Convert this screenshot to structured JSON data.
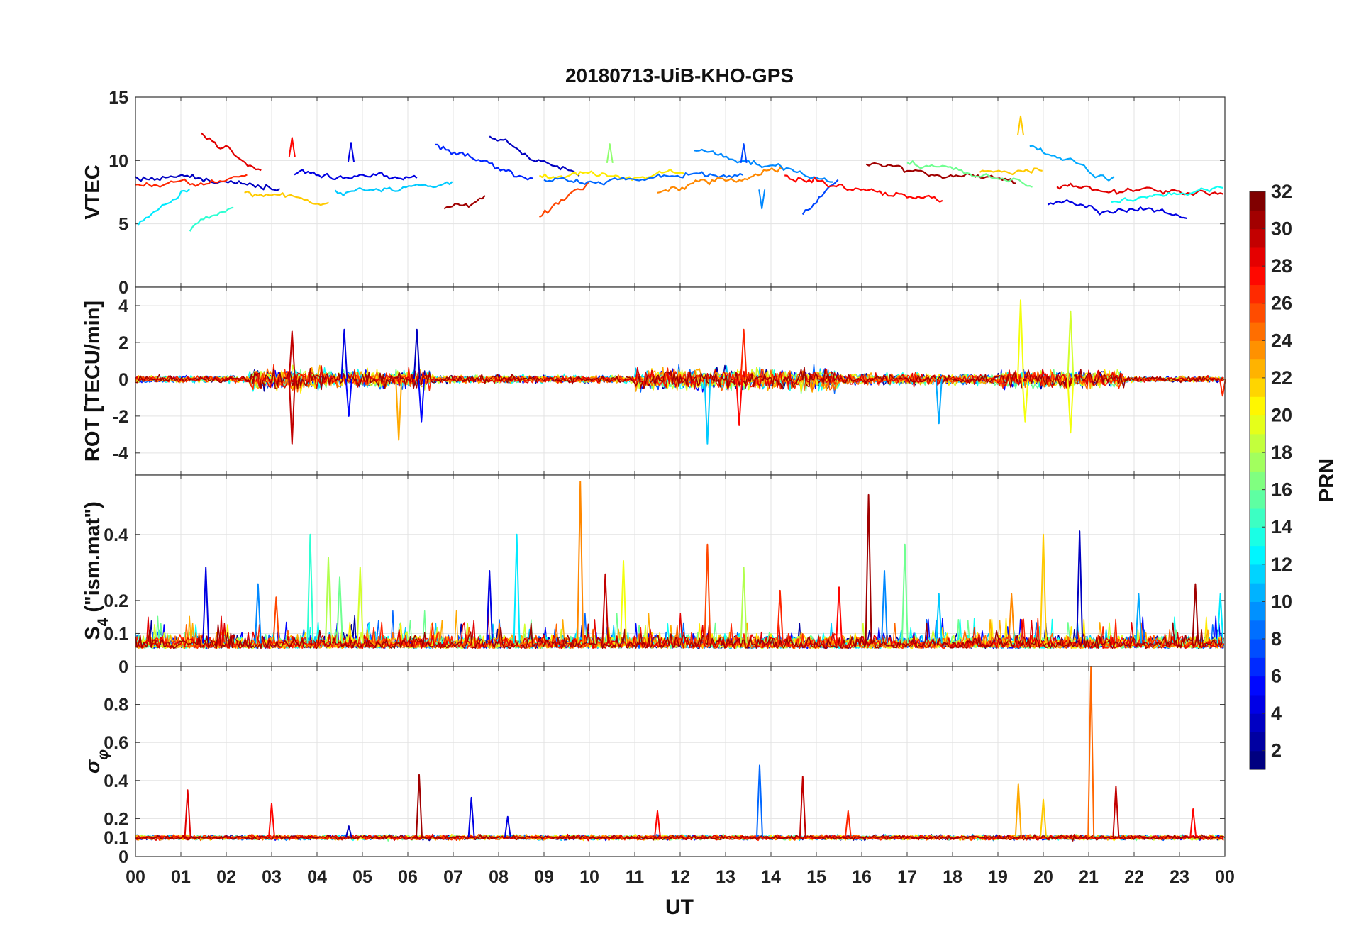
{
  "chart_data": {
    "type": "line",
    "title": "20180713-UiB-KHO-GPS",
    "xlabel": "UT",
    "x_range_hours": [
      0,
      24
    ],
    "x_tick_labels": [
      "00",
      "01",
      "02",
      "03",
      "04",
      "05",
      "06",
      "07",
      "08",
      "09",
      "10",
      "11",
      "12",
      "13",
      "14",
      "15",
      "16",
      "17",
      "18",
      "19",
      "20",
      "21",
      "22",
      "23",
      "00"
    ],
    "panels": [
      {
        "id": "vtec",
        "ylabel": "VTEC",
        "ylim": [
          0,
          15
        ],
        "yticks": [
          0,
          5,
          10,
          15
        ],
        "baseline": 8.2,
        "noise": 0.9,
        "segments": [
          {
            "prn": 3,
            "t0": 0.0,
            "t1": 3.2,
            "start": 8.6,
            "end": 8.0
          },
          {
            "prn": 12,
            "t0": 0.05,
            "t1": 1.2,
            "start": 5.0,
            "end": 7.6
          },
          {
            "prn": 14,
            "t0": 1.2,
            "t1": 2.2,
            "start": 4.4,
            "end": 6.1
          },
          {
            "prn": 29,
            "t0": 1.45,
            "t1": 2.8,
            "start": 12.0,
            "end": 9.0
          },
          {
            "prn": 27,
            "t0": 0.0,
            "t1": 2.5,
            "start": 8.1,
            "end": 8.6
          },
          {
            "prn": 22,
            "t0": 2.4,
            "t1": 4.3,
            "start": 7.4,
            "end": 6.6
          },
          {
            "prn": 4,
            "t0": 3.5,
            "t1": 6.2,
            "start": 9.0,
            "end": 8.6
          },
          {
            "prn": 11,
            "t0": 4.4,
            "t1": 7.0,
            "start": 7.5,
            "end": 8.3
          },
          {
            "prn": 6,
            "t0": 6.6,
            "t1": 8.8,
            "start": 11.1,
            "end": 8.6
          },
          {
            "prn": 31,
            "t0": 6.8,
            "t1": 7.7,
            "start": 6.3,
            "end": 6.8
          },
          {
            "prn": 3,
            "t0": 7.8,
            "t1": 9.8,
            "start": 11.8,
            "end": 8.8
          },
          {
            "prn": 26,
            "t0": 8.9,
            "t1": 10.0,
            "start": 5.4,
            "end": 8.6
          },
          {
            "prn": 21,
            "t0": 8.9,
            "t1": 12.1,
            "start": 8.8,
            "end": 9.1
          },
          {
            "prn": 8,
            "t0": 9.0,
            "t1": 13.4,
            "start": 8.4,
            "end": 8.7
          },
          {
            "prn": 24,
            "t0": 11.5,
            "t1": 14.3,
            "start": 7.4,
            "end": 9.4
          },
          {
            "prn": 9,
            "t0": 12.3,
            "t1": 15.4,
            "start": 10.6,
            "end": 8.6
          },
          {
            "prn": 7,
            "t0": 14.7,
            "t1": 15.5,
            "start": 5.7,
            "end": 8.9
          },
          {
            "prn": 28,
            "t0": 14.3,
            "t1": 17.8,
            "start": 8.8,
            "end": 6.7
          },
          {
            "prn": 31,
            "t0": 16.1,
            "t1": 19.4,
            "start": 9.8,
            "end": 8.3
          },
          {
            "prn": 16,
            "t0": 17.0,
            "t1": 19.8,
            "start": 9.8,
            "end": 8.0
          },
          {
            "prn": 22,
            "t0": 18.6,
            "t1": 20.0,
            "start": 9.0,
            "end": 9.5
          },
          {
            "prn": 10,
            "t0": 19.7,
            "t1": 21.6,
            "start": 11.2,
            "end": 8.7
          },
          {
            "prn": 4,
            "t0": 20.1,
            "t1": 23.2,
            "start": 6.6,
            "end": 5.7
          },
          {
            "prn": 29,
            "t0": 20.3,
            "t1": 24.0,
            "start": 7.9,
            "end": 7.3
          },
          {
            "prn": 13,
            "t0": 21.5,
            "t1": 24.0,
            "start": 6.8,
            "end": 8.1
          }
        ],
        "spikes": [
          {
            "t": 3.45,
            "v": 11.8,
            "prn": 28
          },
          {
            "t": 4.75,
            "v": 11.4,
            "prn": 4
          },
          {
            "t": 10.45,
            "v": 11.3,
            "prn": 17
          },
          {
            "t": 13.4,
            "v": 11.3,
            "prn": 7
          },
          {
            "t": 19.5,
            "v": 13.5,
            "prn": 22
          },
          {
            "t": 13.8,
            "v": 6.2,
            "prn": 9
          }
        ]
      },
      {
        "id": "rot",
        "ylabel": "ROT [TECU/min]",
        "ylim": [
          -5.2,
          5.0
        ],
        "yticks": [
          -4,
          -2,
          0,
          2,
          4
        ],
        "baseline": 0,
        "noise_profile": [
          {
            "t0": 0,
            "t1": 2.5,
            "amp": 0.3
          },
          {
            "t0": 2.5,
            "t1": 4.2,
            "amp": 1.0
          },
          {
            "t0": 4.2,
            "t1": 6.5,
            "amp": 0.8
          },
          {
            "t0": 6.5,
            "t1": 11.0,
            "amp": 0.35
          },
          {
            "t0": 11.0,
            "t1": 15.5,
            "amp": 1.0
          },
          {
            "t0": 15.5,
            "t1": 19.0,
            "amp": 0.5
          },
          {
            "t0": 19.0,
            "t1": 21.8,
            "amp": 0.8
          },
          {
            "t0": 21.8,
            "t1": 24.0,
            "amp": 0.25
          }
        ],
        "spikes": [
          {
            "t": 3.45,
            "v": 2.6,
            "prn": 30
          },
          {
            "t": 3.45,
            "v": -3.5,
            "prn": 30
          },
          {
            "t": 4.6,
            "v": 2.7,
            "prn": 4
          },
          {
            "t": 4.7,
            "v": -2.0,
            "prn": 5
          },
          {
            "t": 5.8,
            "v": -3.3,
            "prn": 23
          },
          {
            "t": 6.2,
            "v": 2.7,
            "prn": 3
          },
          {
            "t": 6.3,
            "v": -2.3,
            "prn": 5
          },
          {
            "t": 12.6,
            "v": -3.5,
            "prn": 11
          },
          {
            "t": 13.4,
            "v": 2.7,
            "prn": 27
          },
          {
            "t": 13.3,
            "v": -2.5,
            "prn": 28
          },
          {
            "t": 17.7,
            "v": -2.4,
            "prn": 10
          },
          {
            "t": 19.5,
            "v": 4.3,
            "prn": 20
          },
          {
            "t": 19.6,
            "v": -2.3,
            "prn": 20
          },
          {
            "t": 20.6,
            "v": 3.7,
            "prn": 19
          },
          {
            "t": 20.6,
            "v": -2.9,
            "prn": 20
          },
          {
            "t": 23.95,
            "v": -0.9,
            "prn": 27
          }
        ]
      },
      {
        "id": "s4",
        "ylabel": "S_4 (\"ism.mat\")",
        "ylabel_main": "S",
        "ylabel_sub": "4",
        "ylabel_rest": " (\"ism.mat\")",
        "ylim": [
          0,
          0.58
        ],
        "yticks": [
          0,
          0.1,
          0.2,
          0.4
        ],
        "baseline": 0.07,
        "noise": 0.04,
        "spikes": [
          {
            "t": 1.55,
            "v": 0.3,
            "prn": 4
          },
          {
            "t": 2.7,
            "v": 0.25,
            "prn": 9
          },
          {
            "t": 3.1,
            "v": 0.21,
            "prn": 26
          },
          {
            "t": 3.85,
            "v": 0.4,
            "prn": 14
          },
          {
            "t": 4.25,
            "v": 0.33,
            "prn": 18
          },
          {
            "t": 4.5,
            "v": 0.27,
            "prn": 16
          },
          {
            "t": 4.95,
            "v": 0.3,
            "prn": 19
          },
          {
            "t": 7.8,
            "v": 0.29,
            "prn": 4
          },
          {
            "t": 8.4,
            "v": 0.4,
            "prn": 12
          },
          {
            "t": 9.8,
            "v": 0.56,
            "prn": 24
          },
          {
            "t": 10.35,
            "v": 0.28,
            "prn": 30
          },
          {
            "t": 10.75,
            "v": 0.32,
            "prn": 20
          },
          {
            "t": 12.6,
            "v": 0.37,
            "prn": 26
          },
          {
            "t": 13.4,
            "v": 0.3,
            "prn": 18
          },
          {
            "t": 14.2,
            "v": 0.23,
            "prn": 27
          },
          {
            "t": 15.5,
            "v": 0.24,
            "prn": 28
          },
          {
            "t": 16.15,
            "v": 0.52,
            "prn": 31
          },
          {
            "t": 16.5,
            "v": 0.29,
            "prn": 9
          },
          {
            "t": 16.95,
            "v": 0.37,
            "prn": 16
          },
          {
            "t": 17.7,
            "v": 0.22,
            "prn": 11
          },
          {
            "t": 19.3,
            "v": 0.22,
            "prn": 24
          },
          {
            "t": 20.0,
            "v": 0.4,
            "prn": 22
          },
          {
            "t": 20.8,
            "v": 0.41,
            "prn": 3
          },
          {
            "t": 22.1,
            "v": 0.22,
            "prn": 10
          },
          {
            "t": 23.35,
            "v": 0.25,
            "prn": 31
          },
          {
            "t": 23.9,
            "v": 0.22,
            "prn": 12
          }
        ]
      },
      {
        "id": "sigma_phi",
        "ylabel": "σ φ",
        "ylabel_main": "σ",
        "ylabel_sub": "φ",
        "ylim": [
          0,
          1.0
        ],
        "yticks": [
          0,
          0.1,
          0.2,
          0.4,
          0.6,
          0.8
        ],
        "baseline": 0.1,
        "noise": 0.012,
        "spikes": [
          {
            "t": 1.15,
            "v": 0.35,
            "prn": 29
          },
          {
            "t": 3.0,
            "v": 0.28,
            "prn": 28
          },
          {
            "t": 4.7,
            "v": 0.16,
            "prn": 3
          },
          {
            "t": 6.25,
            "v": 0.43,
            "prn": 31
          },
          {
            "t": 7.4,
            "v": 0.31,
            "prn": 4
          },
          {
            "t": 8.2,
            "v": 0.21,
            "prn": 4
          },
          {
            "t": 11.5,
            "v": 0.24,
            "prn": 28
          },
          {
            "t": 13.75,
            "v": 0.48,
            "prn": 8
          },
          {
            "t": 14.7,
            "v": 0.42,
            "prn": 30
          },
          {
            "t": 15.7,
            "v": 0.24,
            "prn": 27
          },
          {
            "t": 19.45,
            "v": 0.38,
            "prn": 23
          },
          {
            "t": 20.0,
            "v": 0.3,
            "prn": 22
          },
          {
            "t": 21.05,
            "v": 1.0,
            "prn": 25
          },
          {
            "t": 21.6,
            "v": 0.37,
            "prn": 30
          },
          {
            "t": 23.3,
            "v": 0.25,
            "prn": 28
          }
        ]
      }
    ],
    "colorbar": {
      "label": "PRN",
      "range": [
        1,
        32
      ],
      "ticks": [
        2,
        4,
        6,
        8,
        10,
        12,
        14,
        16,
        18,
        20,
        22,
        24,
        26,
        28,
        30,
        32
      ],
      "colormap": "jet"
    }
  }
}
